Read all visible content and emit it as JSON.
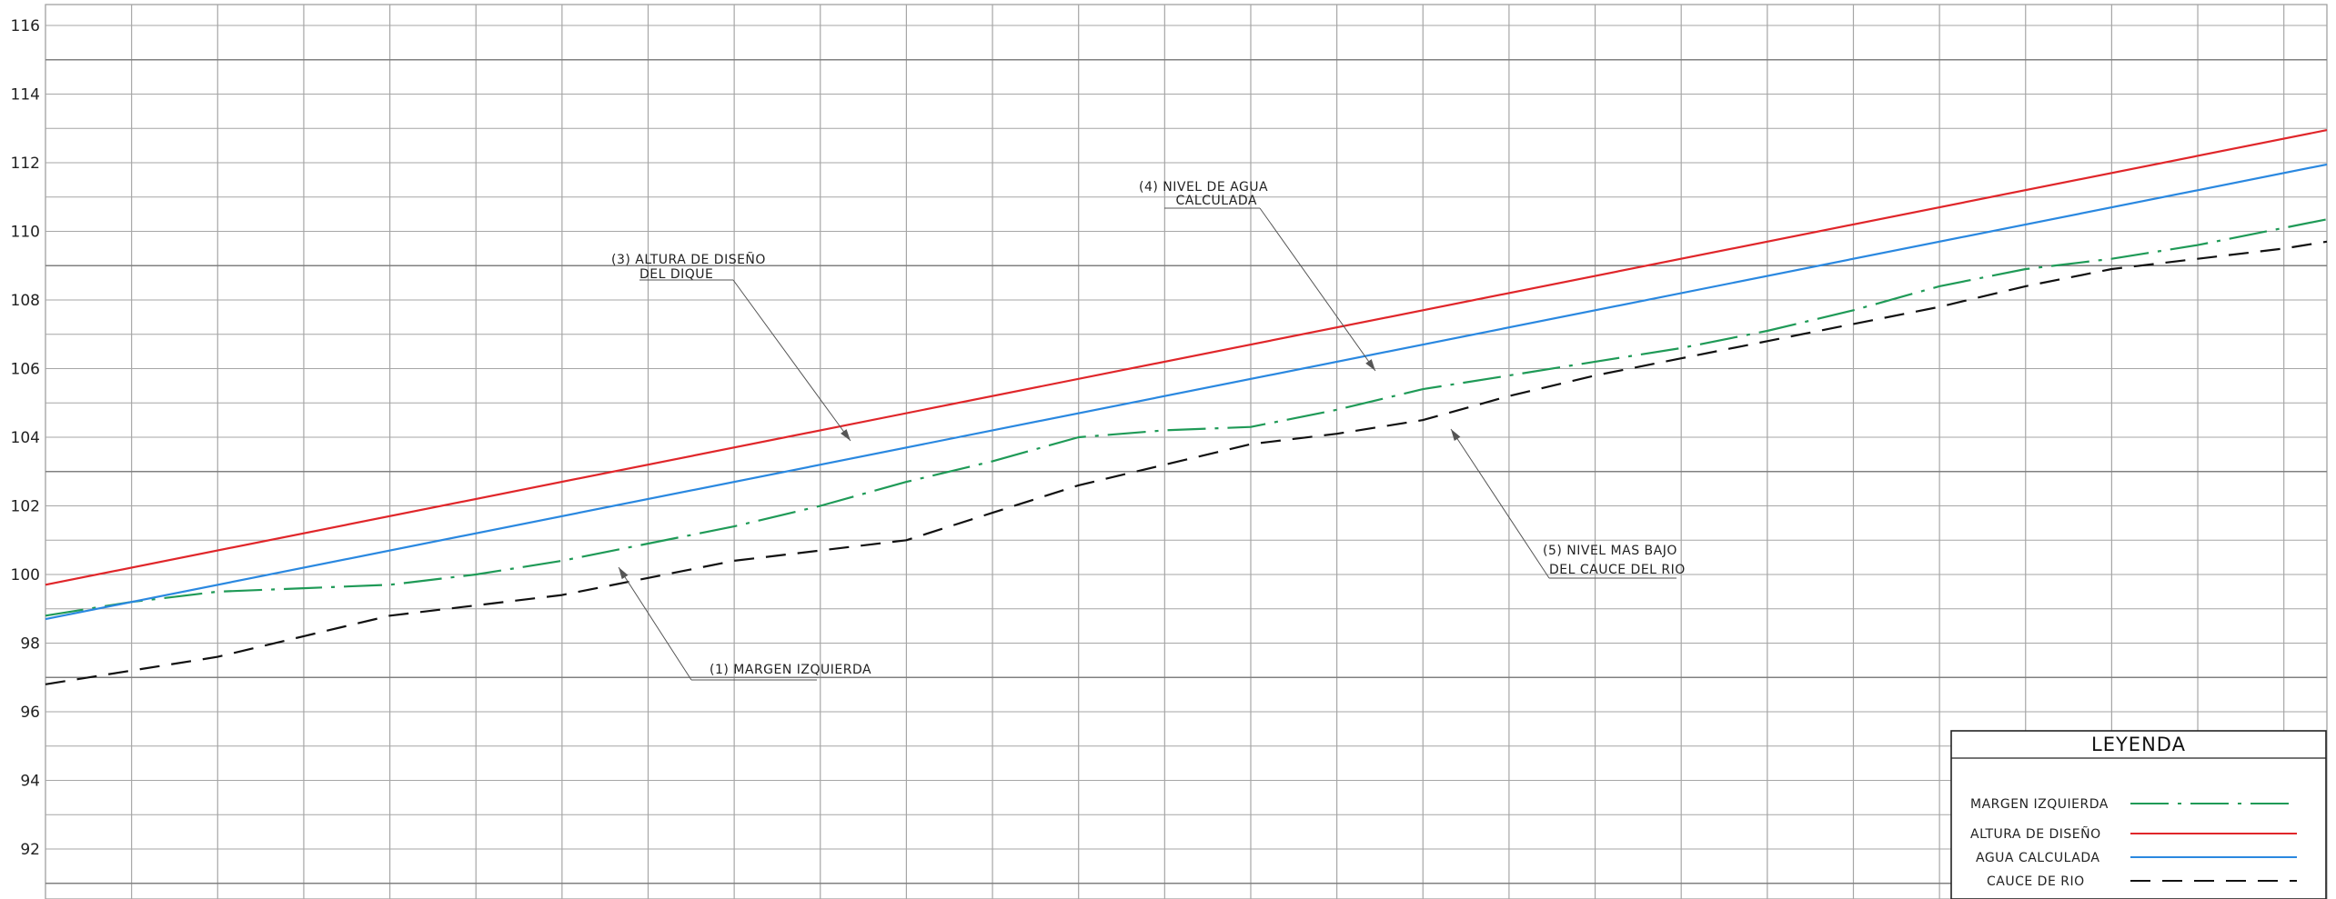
{
  "chart_data": {
    "type": "line",
    "title": "",
    "xlabel": "",
    "ylabel": "",
    "ylim": [
      91,
      117
    ],
    "xlim": [
      0,
      26.5
    ],
    "grid": true,
    "y_ticks": [
      92,
      94,
      96,
      98,
      100,
      102,
      104,
      106,
      108,
      110,
      112,
      114,
      116
    ],
    "series": [
      {
        "key": "margen",
        "color": "#1f9a57",
        "dash": "42 10 4 10",
        "x": [
          0,
          1,
          2,
          3,
          4,
          5,
          6,
          7,
          8,
          9,
          10,
          11,
          12,
          13,
          14,
          15,
          16,
          17,
          18,
          19,
          20,
          21,
          22,
          23,
          24,
          25,
          26,
          26.5
        ],
        "values": [
          98.8,
          99.2,
          99.5,
          99.6,
          99.7,
          100.0,
          100.4,
          100.9,
          101.4,
          102.0,
          102.7,
          103.3,
          104.0,
          104.2,
          104.3,
          104.8,
          105.4,
          105.8,
          106.2,
          106.6,
          107.1,
          107.7,
          108.4,
          108.9,
          109.2,
          109.6,
          110.1,
          110.35
        ]
      },
      {
        "key": "altura",
        "color": "#e0262a",
        "dash": "",
        "x": [
          0,
          26.5
        ],
        "values": [
          99.7,
          112.95
        ]
      },
      {
        "key": "agua",
        "color": "#2a88e0",
        "dash": "",
        "x": [
          0,
          26.5
        ],
        "values": [
          98.7,
          111.95
        ]
      },
      {
        "key": "cauce",
        "color": "#111111",
        "dash": "22 13",
        "x": [
          0,
          1,
          2,
          3,
          4,
          5,
          6,
          7,
          8,
          9,
          10,
          11,
          12,
          13,
          14,
          15,
          16,
          17,
          18,
          19,
          20,
          21,
          22,
          23,
          24,
          25,
          26,
          26.5
        ],
        "values": [
          96.8,
          97.2,
          97.6,
          98.2,
          98.8,
          99.1,
          99.4,
          99.9,
          100.4,
          100.7,
          101.0,
          101.8,
          102.6,
          103.2,
          103.8,
          104.1,
          104.5,
          105.2,
          105.8,
          106.3,
          106.8,
          107.3,
          107.8,
          108.4,
          108.9,
          109.2,
          109.5,
          109.7
        ]
      }
    ],
    "annotations": [
      {
        "key": "a3",
        "lines": [
          "(3)  ALTURA DE DISEÑO",
          "DEL DIQUE"
        ]
      },
      {
        "key": "a4",
        "lines": [
          "(4) NIVEL DE AGUA",
          "CALCULADA"
        ]
      },
      {
        "key": "a5",
        "lines": [
          "(5)  NIVEL MAS BAJO",
          "DEL CAUCE DEL RIO"
        ]
      },
      {
        "key": "a1",
        "lines": [
          "(1)  MARGEN IZQUIERDA"
        ]
      }
    ],
    "legend": {
      "title": "LEYENDA",
      "position": "bottom-right",
      "entries": [
        {
          "label": "MARGEN IZQUIERDA",
          "series": "margen"
        },
        {
          "label": "ALTURA DE DISEÑO",
          "series": "altura"
        },
        {
          "label": "AGUA CALCULADA",
          "series": "agua"
        },
        {
          "label": "CAUCE DE RIO",
          "series": "cauce"
        }
      ]
    }
  }
}
